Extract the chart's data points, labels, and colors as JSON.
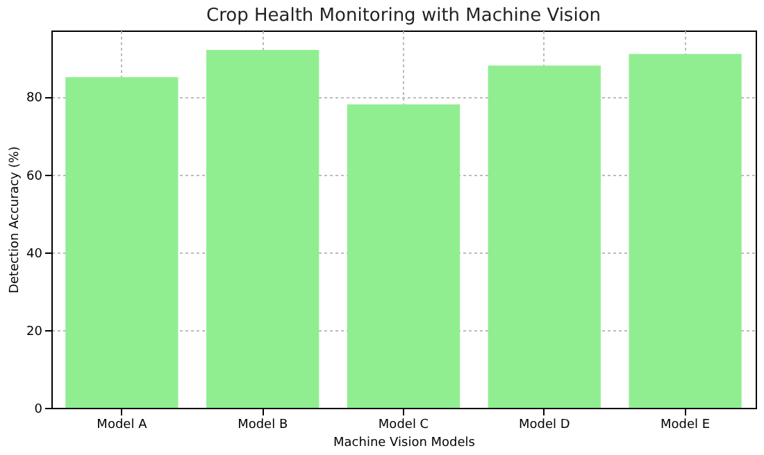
{
  "chart_data": {
    "type": "bar",
    "title": "Crop Health Monitoring with Machine Vision",
    "xlabel": "Machine Vision Models",
    "ylabel": "Detection Accuracy (%)",
    "categories": [
      "Model A",
      "Model B",
      "Model C",
      "Model D",
      "Model E"
    ],
    "values": [
      85,
      92,
      78,
      88,
      91
    ],
    "color": "#90ee90",
    "ylim": [
      0,
      97
    ],
    "yticks": [
      0,
      20,
      40,
      60,
      80
    ],
    "grid": true
  }
}
